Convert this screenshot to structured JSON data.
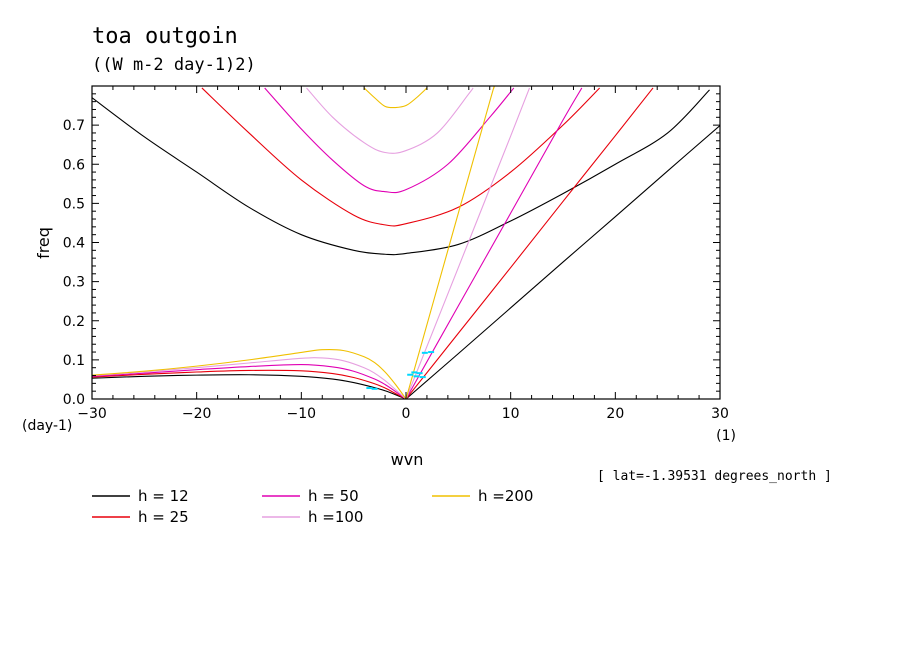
{
  "chart_data": {
    "type": "line",
    "title": "toa outgoin",
    "subtitle": "((W m-2 day-1)2)",
    "xlabel": "wvn",
    "ylabel": "freq",
    "x_unit": "(1)",
    "y_unit": "(day-1)",
    "xlim": [
      -30,
      30
    ],
    "ylim": [
      0,
      0.8
    ],
    "x_ticks": [
      -30,
      -20,
      -10,
      0,
      10,
      20,
      30
    ],
    "x_tick_labels": [
      "-30",
      "-20",
      "-10",
      "0",
      "10",
      "20",
      "30"
    ],
    "y_ticks": [
      0,
      0.1,
      0.2,
      0.3,
      0.4,
      0.5,
      0.6,
      0.7
    ],
    "y_tick_labels": [
      "0.0",
      "0.1",
      "0.2",
      "0.3",
      "0.4",
      "0.5",
      "0.6",
      "0.7"
    ],
    "note": "[ lat=-1.39531 degrees_north ]",
    "grid": false,
    "legend_position": "bottom",
    "series": [
      {
        "name": "h = 12",
        "color": "#000000",
        "rossby": [
          [
            -30,
            0.053
          ],
          [
            -25,
            0.058
          ],
          [
            -20,
            0.061
          ],
          [
            -15,
            0.062
          ],
          [
            -10,
            0.058
          ],
          [
            -7,
            0.051
          ],
          [
            -5,
            0.042
          ],
          [
            -3,
            0.029
          ],
          [
            -2,
            0.021
          ],
          [
            -1,
            0.011
          ],
          [
            0,
            0.0
          ]
        ],
        "kelvin": [
          [
            0,
            0.0
          ],
          [
            5,
            0.116
          ],
          [
            10,
            0.233
          ],
          [
            15,
            0.35
          ],
          [
            20,
            0.466
          ],
          [
            25,
            0.583
          ],
          [
            30,
            0.699
          ]
        ],
        "gravity": [
          [
            -30,
            0.77
          ],
          [
            -25,
            0.67
          ],
          [
            -20,
            0.58
          ],
          [
            -15,
            0.49
          ],
          [
            -10,
            0.42
          ],
          [
            -5,
            0.38
          ],
          [
            -2,
            0.37
          ],
          [
            0,
            0.372
          ],
          [
            5,
            0.395
          ],
          [
            10,
            0.455
          ],
          [
            15,
            0.525
          ],
          [
            20,
            0.6
          ],
          [
            25,
            0.68
          ],
          [
            29,
            0.79
          ]
        ]
      },
      {
        "name": "h = 25",
        "color": "#e8000b",
        "rossby": [
          [
            -30,
            0.056
          ],
          [
            -25,
            0.063
          ],
          [
            -20,
            0.069
          ],
          [
            -15,
            0.073
          ],
          [
            -10,
            0.072
          ],
          [
            -7,
            0.065
          ],
          [
            -5,
            0.055
          ],
          [
            -3,
            0.039
          ],
          [
            -2,
            0.028
          ],
          [
            -1,
            0.014
          ],
          [
            0,
            0.0
          ]
        ],
        "kelvin": [
          [
            0,
            0.0
          ],
          [
            5,
            0.168
          ],
          [
            10,
            0.336
          ],
          [
            15,
            0.505
          ],
          [
            20,
            0.673
          ],
          [
            23.6,
            0.795
          ]
        ],
        "gravity": [
          [
            -19.5,
            0.795
          ],
          [
            -15,
            0.68
          ],
          [
            -10,
            0.56
          ],
          [
            -5,
            0.47
          ],
          [
            -2,
            0.445
          ],
          [
            0,
            0.448
          ],
          [
            5,
            0.49
          ],
          [
            10,
            0.58
          ],
          [
            15,
            0.7
          ],
          [
            18.5,
            0.795
          ]
        ]
      },
      {
        "name": "h = 50",
        "color": "#e000b4",
        "rossby": [
          [
            -30,
            0.058
          ],
          [
            -25,
            0.066
          ],
          [
            -20,
            0.075
          ],
          [
            -15,
            0.083
          ],
          [
            -10,
            0.088
          ],
          [
            -7,
            0.082
          ],
          [
            -5,
            0.071
          ],
          [
            -3,
            0.051
          ],
          [
            -2,
            0.037
          ],
          [
            -1,
            0.019
          ],
          [
            0,
            0.0
          ]
        ],
        "kelvin": [
          [
            0,
            0.0
          ],
          [
            5,
            0.238
          ],
          [
            10,
            0.475
          ],
          [
            15,
            0.713
          ],
          [
            16.8,
            0.795
          ]
        ],
        "gravity": [
          [
            -13.5,
            0.795
          ],
          [
            -10,
            0.69
          ],
          [
            -7,
            0.61
          ],
          [
            -4,
            0.545
          ],
          [
            -2,
            0.53
          ],
          [
            0,
            0.535
          ],
          [
            4,
            0.6
          ],
          [
            8,
            0.72
          ],
          [
            10.3,
            0.795
          ]
        ]
      },
      {
        "name": "h =100",
        "color": "#e6a0e0",
        "rossby": [
          [
            -30,
            0.06
          ],
          [
            -25,
            0.069
          ],
          [
            -20,
            0.08
          ],
          [
            -15,
            0.092
          ],
          [
            -10,
            0.104
          ],
          [
            -8,
            0.105
          ],
          [
            -6,
            0.098
          ],
          [
            -4,
            0.08
          ],
          [
            -3,
            0.066
          ],
          [
            -2,
            0.047
          ],
          [
            -1,
            0.024
          ],
          [
            0,
            0.0
          ]
        ],
        "kelvin": [
          [
            0,
            0.0
          ],
          [
            5,
            0.336
          ],
          [
            10,
            0.672
          ],
          [
            11.8,
            0.795
          ]
        ],
        "gravity": [
          [
            -9.5,
            0.795
          ],
          [
            -7,
            0.72
          ],
          [
            -4,
            0.655
          ],
          [
            -2,
            0.63
          ],
          [
            0,
            0.635
          ],
          [
            3,
            0.68
          ],
          [
            6,
            0.78
          ],
          [
            6.4,
            0.795
          ]
        ]
      },
      {
        "name": "h =200",
        "color": "#f0c000",
        "rossby": [
          [
            -30,
            0.061
          ],
          [
            -25,
            0.071
          ],
          [
            -20,
            0.084
          ],
          [
            -15,
            0.1
          ],
          [
            -10,
            0.119
          ],
          [
            -8,
            0.126
          ],
          [
            -6,
            0.124
          ],
          [
            -4,
            0.108
          ],
          [
            -3,
            0.093
          ],
          [
            -2,
            0.069
          ],
          [
            -1,
            0.037
          ],
          [
            0,
            0.0
          ]
        ],
        "kelvin": [
          [
            0,
            0.0
          ],
          [
            4,
            0.38
          ],
          [
            8,
            0.76
          ],
          [
            8.4,
            0.795
          ]
        ],
        "gravity": [
          [
            -4,
            0.795
          ],
          [
            -3,
            0.77
          ],
          [
            -2,
            0.748
          ],
          [
            -1,
            0.745
          ],
          [
            0,
            0.75
          ],
          [
            1,
            0.77
          ],
          [
            2,
            0.795
          ]
        ]
      }
    ],
    "markers": [
      {
        "color": "#00d8ff",
        "points": [
          [
            1.8,
            0.118
          ],
          [
            2.4,
            0.12
          ],
          [
            0.4,
            0.062
          ],
          [
            0.8,
            0.068
          ],
          [
            1.0,
            0.058
          ],
          [
            1.3,
            0.066
          ],
          [
            1.6,
            0.056
          ],
          [
            -3.5,
            0.028
          ],
          [
            -3.0,
            0.026
          ]
        ]
      }
    ]
  }
}
